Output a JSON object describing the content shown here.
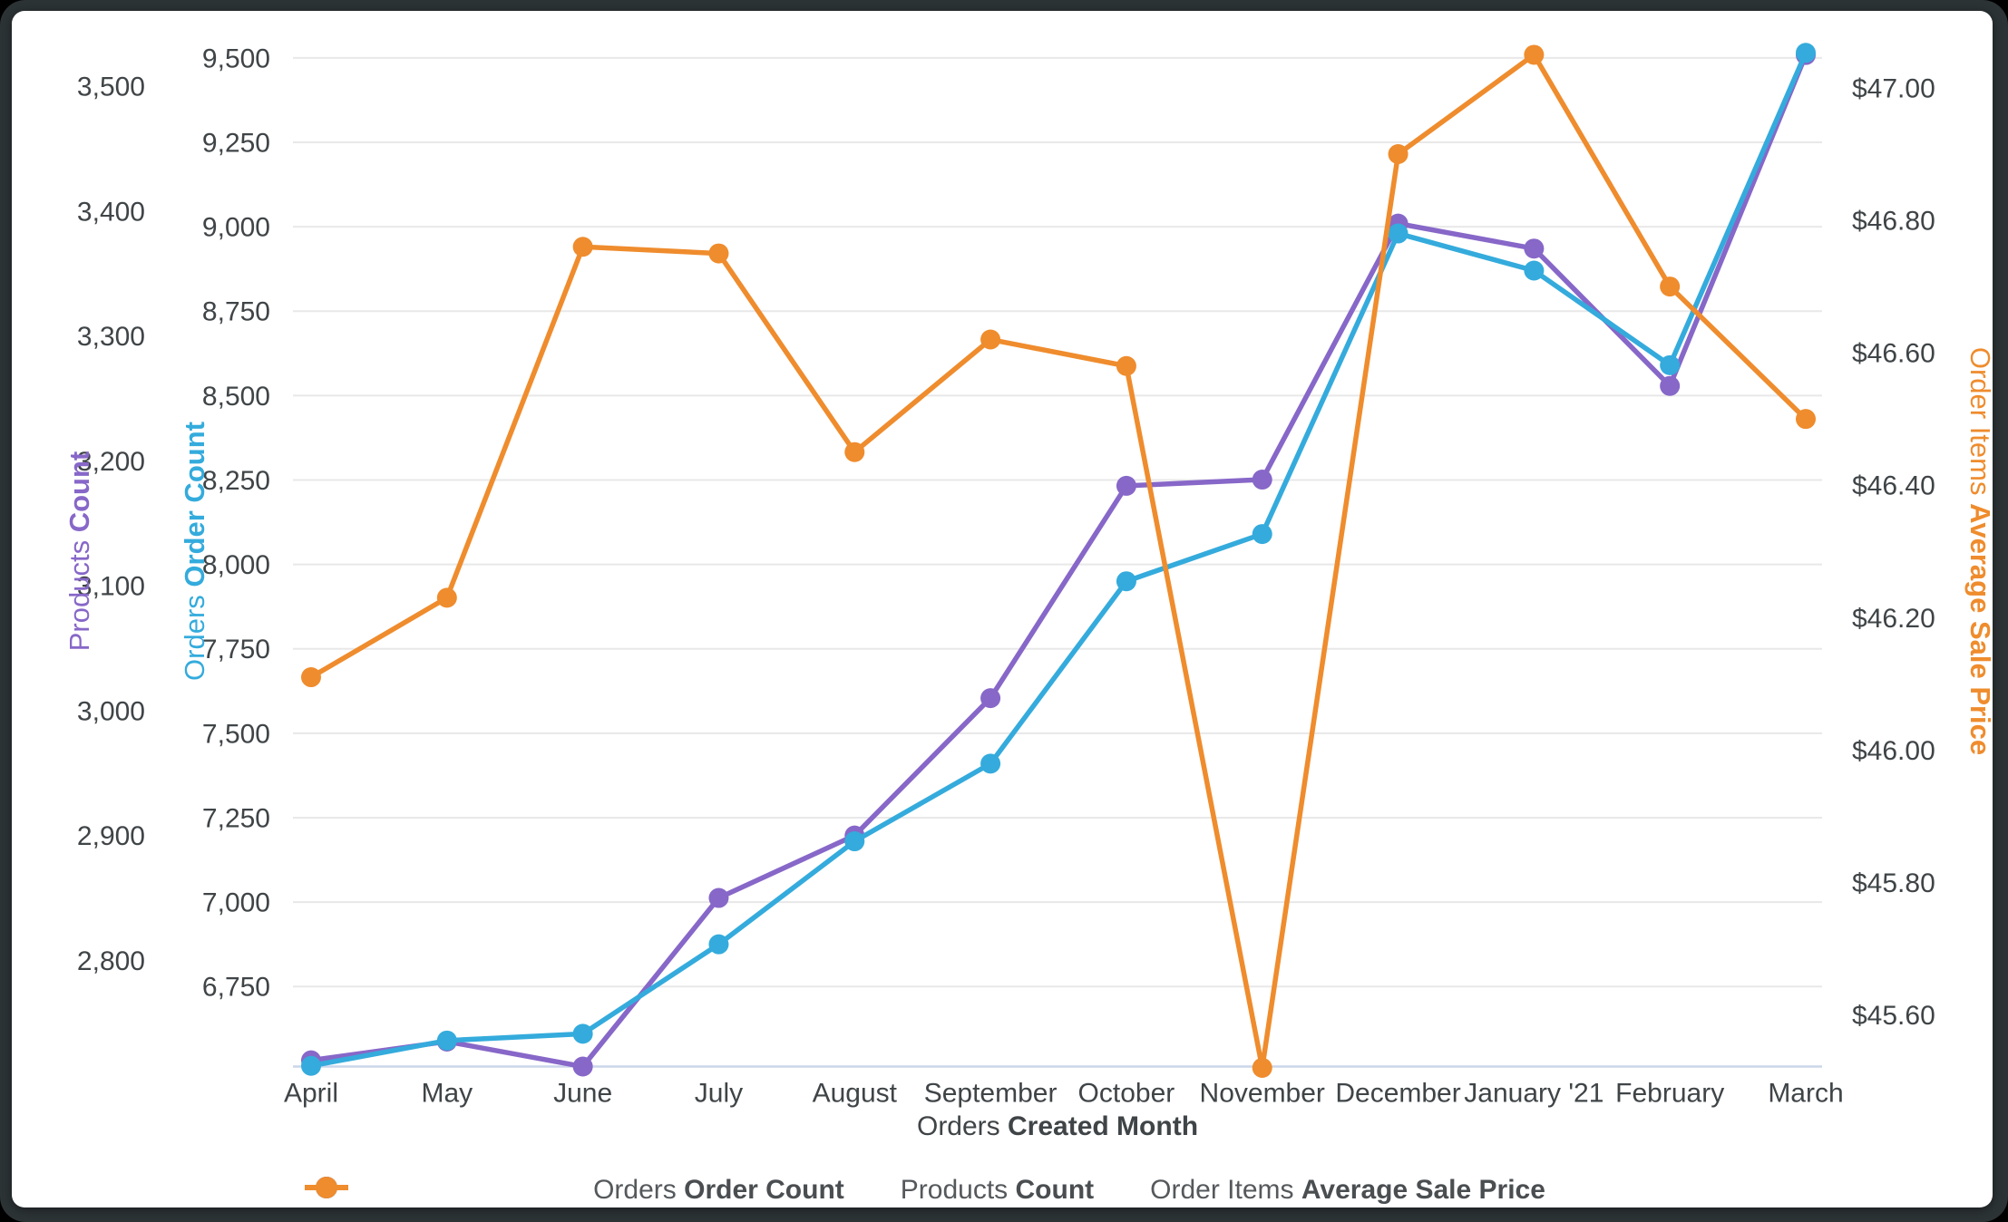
{
  "chart_data": {
    "type": "line",
    "categories": [
      "April",
      "May",
      "June",
      "July",
      "August",
      "September",
      "October",
      "November",
      "December",
      "January '21",
      "February",
      "March"
    ],
    "series": [
      {
        "id": "products",
        "legend_regular": "Products",
        "legend_bold": "Count",
        "axis": "products",
        "color": "#8767C8",
        "values": [
          2720,
          2735,
          2715,
          2850,
          2900,
          3010,
          3180,
          3185,
          3390,
          3370,
          3260,
          3525
        ]
      },
      {
        "id": "orders",
        "legend_regular": "Orders",
        "legend_bold": "Order Count",
        "axis": "orders",
        "color": "#34ABDC",
        "values": [
          6515,
          6590,
          6610,
          6875,
          7180,
          7410,
          7950,
          8090,
          8980,
          8870,
          8590,
          9515
        ]
      },
      {
        "id": "price",
        "legend_regular": "Order Items",
        "legend_bold": "Average Sale Price",
        "axis": "price",
        "color": "#EF8C2D",
        "values": [
          46.11,
          46.23,
          46.76,
          46.75,
          46.45,
          46.62,
          46.58,
          45.52,
          46.9,
          47.05,
          46.7,
          46.5
        ]
      }
    ],
    "legend_order": [
      "orders",
      "products",
      "price"
    ],
    "axes": {
      "orders": {
        "title_regular": "Orders",
        "title_bold": "Order Count",
        "color": "#34ABDC",
        "min": 6513,
        "max": 9564,
        "grid": true,
        "ticks": [
          {
            "label": "6,750",
            "value": 6750
          },
          {
            "label": "7,000",
            "value": 7000
          },
          {
            "label": "7,250",
            "value": 7250
          },
          {
            "label": "7,500",
            "value": 7500
          },
          {
            "label": "7,750",
            "value": 7750
          },
          {
            "label": "8,000",
            "value": 8000
          },
          {
            "label": "8,250",
            "value": 8250
          },
          {
            "label": "8,500",
            "value": 8500
          },
          {
            "label": "8,750",
            "value": 8750
          },
          {
            "label": "9,000",
            "value": 9000
          },
          {
            "label": "9,250",
            "value": 9250
          },
          {
            "label": "9,500",
            "value": 9500
          }
        ]
      },
      "products": {
        "title_regular": "Products",
        "title_bold": "Count",
        "color": "#8767C8",
        "min": 2715,
        "max": 3540,
        "grid": false,
        "ticks": [
          {
            "label": "2,800",
            "value": 2800
          },
          {
            "label": "2,900",
            "value": 2900
          },
          {
            "label": "3,000",
            "value": 3000
          },
          {
            "label": "3,100",
            "value": 3100
          },
          {
            "label": "3,200",
            "value": 3200
          },
          {
            "label": "3,300",
            "value": 3300
          },
          {
            "label": "3,400",
            "value": 3400
          },
          {
            "label": "3,500",
            "value": 3500
          }
        ]
      },
      "price": {
        "title_regular": "Order Items",
        "title_bold": "Average Sale Price",
        "color": "#EF8C2D",
        "min": 45.522,
        "max": 47.078,
        "grid": false,
        "ticks": [
          {
            "label": "$45.60",
            "value": 45.6
          },
          {
            "label": "$45.80",
            "value": 45.8
          },
          {
            "label": "$46.00",
            "value": 46.0
          },
          {
            "label": "$46.20",
            "value": 46.2
          },
          {
            "label": "$46.40",
            "value": 46.4
          },
          {
            "label": "$46.60",
            "value": 46.6
          },
          {
            "label": "$46.80",
            "value": 46.8
          },
          {
            "label": "$47.00",
            "value": 47.0
          }
        ]
      }
    },
    "xaxis": {
      "title_regular": "Orders",
      "title_bold": "Created Month"
    },
    "grid_color": "#E8E8E8",
    "axisline_color": "#CCD6EB",
    "legend_position": "bottom"
  }
}
